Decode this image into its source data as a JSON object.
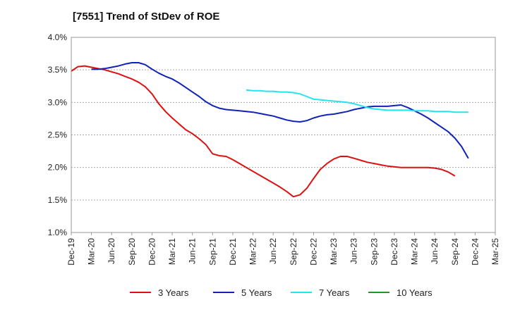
{
  "chart_data": {
    "type": "line",
    "title": "[7551]  Trend of StDev of ROE",
    "xlabel": "",
    "ylabel": "",
    "x_ticks": [
      "Dec-19",
      "Mar-20",
      "Jun-20",
      "Sep-20",
      "Dec-20",
      "Mar-21",
      "Jun-21",
      "Sep-21",
      "Dec-21",
      "Mar-22",
      "Jun-22",
      "Sep-22",
      "Dec-22",
      "Mar-23",
      "Jun-23",
      "Sep-23",
      "Dec-23",
      "Mar-24",
      "Jun-24",
      "Sep-24",
      "Dec-24",
      "Mar-25"
    ],
    "y_ticks": [
      "1.0%",
      "1.5%",
      "2.0%",
      "2.5%",
      "3.0%",
      "3.5%",
      "4.0%"
    ],
    "ylim": [
      1.0,
      4.0
    ],
    "grid": "horizontal",
    "legend_position": "bottom",
    "series": [
      {
        "name": "3 Years",
        "color": "#dd1111",
        "start_index": 0,
        "values": [
          3.48,
          3.55,
          3.56,
          3.54,
          3.52,
          3.5,
          3.47,
          3.44,
          3.4,
          3.36,
          3.31,
          3.24,
          3.13,
          2.98,
          2.86,
          2.76,
          2.67,
          2.58,
          2.52,
          2.44,
          2.35,
          2.21,
          2.18,
          2.17,
          2.12,
          2.06,
          2.0,
          1.94,
          1.88,
          1.82,
          1.76,
          1.7,
          1.63,
          1.55,
          1.58,
          1.68,
          1.83,
          1.97,
          2.06,
          2.13,
          2.17,
          2.17,
          2.14,
          2.11,
          2.08,
          2.06,
          2.04,
          2.02,
          2.01,
          2.0,
          2.0,
          2.0,
          2.0,
          2.0,
          1.99,
          1.97,
          1.93,
          1.87
        ]
      },
      {
        "name": "5 Years",
        "color": "#1122bb",
        "start_index": 3,
        "values": [
          3.51,
          3.51,
          3.52,
          3.54,
          3.56,
          3.59,
          3.61,
          3.61,
          3.58,
          3.51,
          3.45,
          3.4,
          3.36,
          3.3,
          3.23,
          3.16,
          3.09,
          3.01,
          2.95,
          2.91,
          2.89,
          2.88,
          2.87,
          2.86,
          2.85,
          2.83,
          2.81,
          2.79,
          2.76,
          2.73,
          2.71,
          2.7,
          2.72,
          2.76,
          2.79,
          2.81,
          2.82,
          2.84,
          2.86,
          2.89,
          2.91,
          2.93,
          2.94,
          2.94,
          2.94,
          2.95,
          2.96,
          2.92,
          2.87,
          2.82,
          2.76,
          2.69,
          2.62,
          2.55,
          2.45,
          2.32,
          2.14
        ]
      },
      {
        "name": "7 Years",
        "color": "#22e5ee",
        "start_index": 26,
        "values": [
          3.19,
          3.18,
          3.18,
          3.17,
          3.17,
          3.16,
          3.16,
          3.15,
          3.13,
          3.09,
          3.05,
          3.04,
          3.03,
          3.02,
          3.01,
          3.0,
          2.98,
          2.95,
          2.92,
          2.9,
          2.89,
          2.88,
          2.88,
          2.88,
          2.88,
          2.87,
          2.87,
          2.87,
          2.86,
          2.86,
          2.86,
          2.85,
          2.85,
          2.85
        ]
      },
      {
        "name": "10 Years",
        "color": "#229922",
        "start_index": 0,
        "values": []
      }
    ]
  }
}
